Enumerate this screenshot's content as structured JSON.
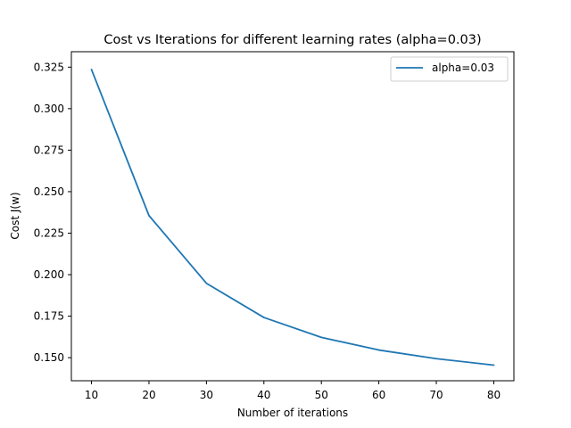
{
  "chart_data": {
    "type": "line",
    "title": "Cost vs Iterations for different learning rates (alpha=0.03)",
    "xlabel": "Number of iterations",
    "ylabel": "Cost J(w)",
    "x": [
      10,
      20,
      30,
      40,
      50,
      60,
      70,
      80
    ],
    "xlim": [
      6.5,
      83.5
    ],
    "ylim": [
      0.1361,
      0.3343
    ],
    "xticks": [
      10,
      20,
      30,
      40,
      50,
      60,
      70,
      80
    ],
    "xtick_labels": [
      "10",
      "20",
      "30",
      "40",
      "50",
      "60",
      "70",
      "80"
    ],
    "yticks": [
      0.15,
      0.175,
      0.2,
      0.225,
      0.25,
      0.275,
      0.3,
      0.325
    ],
    "ytick_labels": [
      "0.150",
      "0.175",
      "0.200",
      "0.225",
      "0.250",
      "0.275",
      "0.300",
      "0.325"
    ],
    "grid": false,
    "legend_position": "top-right",
    "series": [
      {
        "name": "alpha=0.03",
        "color": "#1f77b4",
        "values": [
          0.3236,
          0.2356,
          0.1948,
          0.1742,
          0.1622,
          0.1546,
          0.1494,
          0.1455
        ]
      }
    ]
  }
}
